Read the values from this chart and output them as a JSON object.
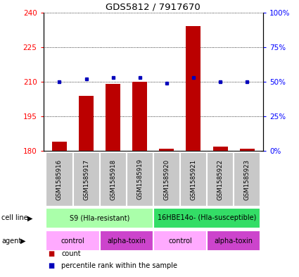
{
  "title": "GDS5812 / 7917670",
  "samples": [
    "GSM1585916",
    "GSM1585917",
    "GSM1585918",
    "GSM1585919",
    "GSM1585920",
    "GSM1585921",
    "GSM1585922",
    "GSM1585923"
  ],
  "counts": [
    184,
    204,
    209,
    210,
    181,
    234,
    182,
    181
  ],
  "percentiles": [
    50,
    52,
    53,
    53,
    49,
    53,
    50,
    50
  ],
  "bar_color": "#bb0000",
  "dot_color": "#0000bb",
  "ylim_left": [
    180,
    240
  ],
  "ylim_right": [
    0,
    100
  ],
  "yticks_left": [
    180,
    195,
    210,
    225,
    240
  ],
  "yticks_right": [
    0,
    25,
    50,
    75,
    100
  ],
  "ytick_labels_right": [
    "0%",
    "25%",
    "50%",
    "75%",
    "100%"
  ],
  "cell_line_groups": [
    {
      "label": "S9 (Hla-resistant)",
      "span": [
        0,
        4
      ],
      "color": "#aaffaa"
    },
    {
      "label": "16HBE14o- (Hla-susceptible)",
      "span": [
        4,
        8
      ],
      "color": "#33dd66"
    }
  ],
  "agent_groups": [
    {
      "label": "control",
      "span": [
        0,
        2
      ],
      "color": "#ffaaff"
    },
    {
      "label": "alpha-toxin",
      "span": [
        2,
        4
      ],
      "color": "#cc44cc"
    },
    {
      "label": "control",
      "span": [
        4,
        6
      ],
      "color": "#ffaaff"
    },
    {
      "label": "alpha-toxin",
      "span": [
        6,
        8
      ],
      "color": "#cc44cc"
    }
  ],
  "legend_items": [
    {
      "color": "#bb0000",
      "label": "count"
    },
    {
      "color": "#0000bb",
      "label": "percentile rank within the sample"
    }
  ],
  "sample_box_color": "#c8c8c8",
  "label_fontsize": 7,
  "bar_width": 0.55
}
